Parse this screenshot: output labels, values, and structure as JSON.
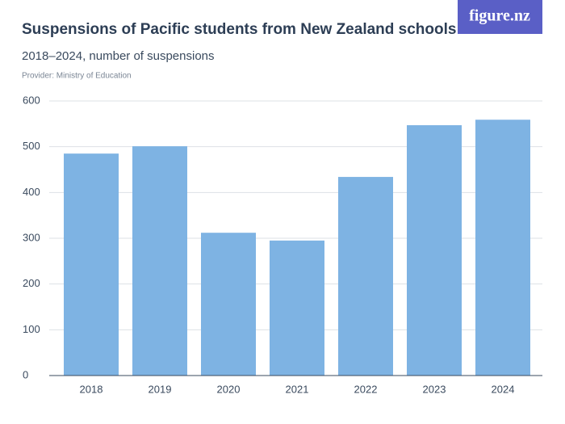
{
  "chart_data": {
    "type": "bar",
    "title": "Suspensions of Pacific students from New Zealand schools",
    "subtitle": "2018–2024, number of suspensions",
    "provider": "Provider: Ministry of Education",
    "logo": "figure.nz",
    "categories": [
      "2018",
      "2019",
      "2020",
      "2021",
      "2022",
      "2023",
      "2024"
    ],
    "values": [
      485,
      501,
      312,
      295,
      434,
      547,
      559
    ],
    "color": "#7eb3e3",
    "ylim": [
      0,
      600
    ],
    "yticks": [
      0,
      100,
      200,
      300,
      400,
      500,
      600
    ],
    "grid": true
  }
}
